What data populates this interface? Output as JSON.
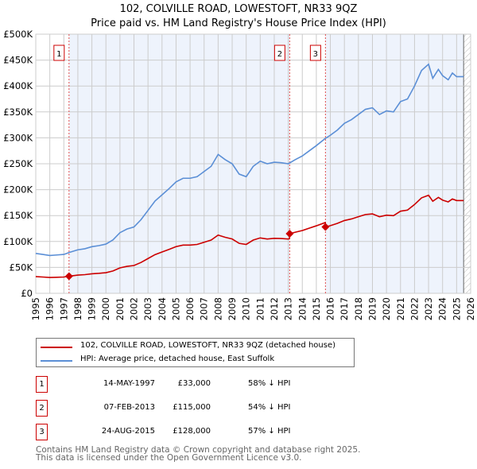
{
  "chart_data": {
    "type": "line",
    "title": "102, COLVILLE ROAD, LOWESTOFT, NR33 9QZ",
    "subtitle": "Price paid vs. HM Land Registry's House Price Index (HPI)",
    "ylim": [
      0,
      500000
    ],
    "xlim": [
      1995,
      2026
    ],
    "y_ticks": [
      {
        "v": 0,
        "label": "£0"
      },
      {
        "v": 50000,
        "label": "£50K"
      },
      {
        "v": 100000,
        "label": "£100K"
      },
      {
        "v": 150000,
        "label": "£150K"
      },
      {
        "v": 200000,
        "label": "£200K"
      },
      {
        "v": 250000,
        "label": "£250K"
      },
      {
        "v": 300000,
        "label": "£300K"
      },
      {
        "v": 350000,
        "label": "£350K"
      },
      {
        "v": 400000,
        "label": "£400K"
      },
      {
        "v": 450000,
        "label": "£450K"
      },
      {
        "v": 500000,
        "label": "£500K"
      }
    ],
    "x_ticks": [
      "1995",
      "1996",
      "1997",
      "1998",
      "1999",
      "2000",
      "2001",
      "2002",
      "2003",
      "2004",
      "2005",
      "2006",
      "2007",
      "2008",
      "2009",
      "2010",
      "2011",
      "2012",
      "2013",
      "2014",
      "2015",
      "2016",
      "2017",
      "2018",
      "2019",
      "2020",
      "2021",
      "2022",
      "2023",
      "2024",
      "2025",
      "2026"
    ],
    "data_end": 2025.5,
    "series": [
      {
        "name": "HPI: Average price, detached house, East Suffolk",
        "color": "#5b8fd6",
        "x": [
          1995,
          1995.5,
          1996,
          1996.5,
          1997,
          1997.4,
          1998,
          1998.5,
          1999,
          1999.5,
          2000,
          2000.5,
          2001,
          2001.5,
          2002,
          2002.5,
          2003,
          2003.5,
          2004,
          2004.5,
          2005,
          2005.5,
          2006,
          2006.5,
          2007,
          2007.5,
          2008,
          2008.5,
          2009,
          2009.5,
          2010,
          2010.5,
          2011,
          2011.5,
          2012,
          2012.5,
          2013,
          2013.5,
          2014,
          2014.5,
          2015,
          2015.6,
          2016,
          2016.5,
          2017,
          2017.5,
          2018,
          2018.5,
          2019,
          2019.5,
          2020,
          2020.5,
          2021,
          2021.5,
          2022,
          2022.5,
          2023,
          2023.3,
          2023.7,
          2024,
          2024.4,
          2024.7,
          2025,
          2025.5
        ],
        "y": [
          77000,
          75000,
          73000,
          74000,
          75000,
          79000,
          84000,
          86000,
          90000,
          92000,
          95000,
          103000,
          117000,
          124000,
          128000,
          142000,
          160000,
          178000,
          190000,
          202000,
          215000,
          222000,
          222000,
          225000,
          235000,
          245000,
          268000,
          258000,
          250000,
          230000,
          225000,
          245000,
          255000,
          250000,
          253000,
          252000,
          250000,
          258000,
          265000,
          275000,
          285000,
          298000,
          305000,
          315000,
          328000,
          335000,
          345000,
          355000,
          358000,
          345000,
          352000,
          350000,
          370000,
          375000,
          400000,
          430000,
          442000,
          415000,
          432000,
          420000,
          412000,
          425000,
          418000,
          418000
        ]
      },
      {
        "name": "102, COLVILLE ROAD, LOWESTOFT, NR33 9QZ (detached house)",
        "color": "#cc0000",
        "derived_from_hpi_and_sales": true
      }
    ],
    "sales": [
      {
        "n": "1",
        "x": 1997.37,
        "date": "14-MAY-1997",
        "price": 33000,
        "price_label": "£33,000",
        "hpi": "58% ↓ HPI"
      },
      {
        "n": "2",
        "x": 2013.1,
        "date": "07-FEB-2013",
        "price": 115000,
        "price_label": "£115,000",
        "hpi": "54% ↓ HPI"
      },
      {
        "n": "3",
        "x": 2015.65,
        "date": "24-AUG-2015",
        "price": 128000,
        "price_label": "£128,000",
        "hpi": "57% ↓ HPI"
      }
    ]
  },
  "legend": {
    "property": "102, COLVILLE ROAD, LOWESTOFT, NR33 9QZ (detached house)",
    "hpi": "HPI: Average price, detached house, East Suffolk"
  },
  "footer": {
    "line1": "Contains HM Land Registry data © Crown copyright and database right 2025.",
    "line2": "This data is licensed under the Open Government Licence v3.0."
  }
}
